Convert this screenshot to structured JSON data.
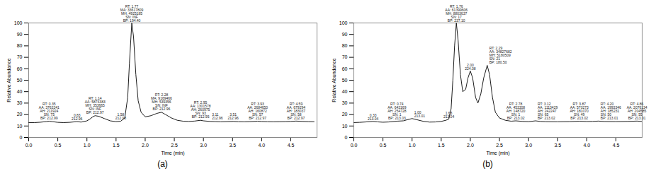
{
  "chart_data": [
    {
      "type": "line",
      "caption": "(a)",
      "x_label": "Time (min)",
      "y_label": "Relative Abundance",
      "color": "#1a1a1a",
      "xlim": [
        0,
        4.95
      ],
      "xticks": [
        {
          "value": 0,
          "label": "0.0"
        },
        0.5,
        {
          "value": 1,
          "label": "1.0"
        },
        1.5,
        {
          "value": 2,
          "label": "2.0"
        },
        2.5,
        {
          "value": 3,
          "label": "3.0"
        },
        3.5,
        {
          "value": 4,
          "label": "4.0"
        },
        4.5
      ],
      "ylim": [
        0,
        100
      ],
      "yticks": [
        0,
        10,
        20,
        30,
        40,
        50,
        60,
        70,
        80,
        90,
        100
      ],
      "x": [
        0,
        0.1,
        0.2,
        0.3,
        0.35,
        0.4,
        0.5,
        0.6,
        0.7,
        0.83,
        0.9,
        1.0,
        1.05,
        1.1,
        1.14,
        1.2,
        1.3,
        1.4,
        1.5,
        1.58,
        1.65,
        1.7,
        1.73,
        1.77,
        1.8,
        1.84,
        1.88,
        1.93,
        2.0,
        2.1,
        2.2,
        2.28,
        2.35,
        2.45,
        2.55,
        2.65,
        2.75,
        2.85,
        2.95,
        3.0,
        3.11,
        3.2,
        3.3,
        3.4,
        3.51,
        3.6,
        3.7,
        3.8,
        3.93,
        4.0,
        4.1,
        4.2,
        4.3,
        4.4,
        4.5,
        4.59,
        4.7,
        4.8,
        4.9
      ],
      "values": [
        13,
        13,
        13.3,
        13.8,
        14.2,
        13.8,
        13.2,
        13,
        13.2,
        13.8,
        13.4,
        14.5,
        16,
        18,
        19,
        18.5,
        16.5,
        14.5,
        13.8,
        14.2,
        17,
        35,
        65,
        100,
        88,
        55,
        32,
        22,
        18,
        19,
        21,
        22,
        20,
        17,
        15,
        14.2,
        14,
        14.3,
        15,
        14.5,
        14,
        13.8,
        13.6,
        13.8,
        14,
        13.7,
        13.6,
        13.8,
        14.2,
        13.9,
        13.7,
        13.6,
        13.7,
        13.8,
        14,
        14.3,
        14,
        13.8,
        13.7
      ],
      "annotations": [
        {
          "x": 0.35,
          "y": 14.5,
          "text": [
            "RT: 0.35",
            "AA: 3763241",
            "AH: 211924",
            "SN: 75",
            "BP: 212.99"
          ]
        },
        {
          "x": 0.83,
          "y": 14,
          "text": [
            "0.83",
            "212.96"
          ]
        },
        {
          "x": 1.14,
          "y": 19.5,
          "text": [
            "RT: 1.14",
            "AA: 5874383",
            "MH: 353665",
            "SN: INF",
            "BP: 212.97"
          ]
        },
        {
          "x": 1.58,
          "y": 14.5,
          "text": [
            "1.58",
            "212.98"
          ]
        },
        {
          "x": 1.77,
          "y": 100,
          "text": [
            "RT: 1.77",
            "MA: 33617809",
            "MH: 4925185",
            "SN: INF",
            "BP: 194.40"
          ]
        },
        {
          "x": 2.28,
          "y": 22.5,
          "text": [
            "RT: 2.28",
            "MA: 9169466",
            "MH: 539356",
            "SN: INF",
            "BP: 212.96"
          ]
        },
        {
          "x": 2.95,
          "y": 15.5,
          "text": [
            "RT: 2.95",
            "AA: 1301578",
            "AH: 260975",
            "SN: 93",
            "BP: 212.95"
          ]
        },
        {
          "x": 3.11,
          "y": 14.5,
          "text": [
            "3.11",
            "212.96"
          ]
        },
        {
          "x": 3.51,
          "y": 14.5,
          "text": [
            "3.51",
            "212.96"
          ]
        },
        {
          "x": 3.93,
          "y": 14.5,
          "text": [
            "RT: 3.93",
            "AA: 2684650",
            "AH: 160872",
            "SN: 57",
            "BP: 212.97"
          ]
        },
        {
          "x": 4.59,
          "y": 14.5,
          "text": [
            "RT: 4.59",
            "AA: 679294",
            "AH: 183037",
            "SN: 58",
            "BP: 212.97"
          ]
        }
      ]
    },
    {
      "type": "line",
      "caption": "(b)",
      "x_label": "Time (min)",
      "y_label": "Relative Abundance",
      "color": "#1a1a1a",
      "xlim": [
        0,
        4.95
      ],
      "xticks": [
        {
          "value": 0,
          "label": "0.0"
        },
        0.5,
        {
          "value": 1,
          "label": "1.0"
        },
        1.5,
        {
          "value": 2,
          "label": "2.0"
        },
        2.5,
        {
          "value": 3,
          "label": "3.0"
        },
        3.5,
        {
          "value": 4,
          "label": "4.0"
        },
        4.5
      ],
      "ylim": [
        0,
        100
      ],
      "yticks": [
        0,
        10,
        20,
        30,
        40,
        50,
        60,
        70,
        80,
        90,
        100
      ],
      "x": [
        0,
        0.1,
        0.2,
        0.33,
        0.4,
        0.5,
        0.6,
        0.74,
        0.85,
        0.92,
        1.0,
        1.08,
        1.2,
        1.3,
        1.4,
        1.5,
        1.58,
        1.63,
        1.67,
        1.7,
        1.73,
        1.76,
        1.79,
        1.83,
        1.87,
        1.92,
        1.96,
        2.0,
        2.04,
        2.09,
        2.13,
        2.18,
        2.23,
        2.29,
        2.33,
        2.38,
        2.43,
        2.5,
        2.6,
        2.7,
        2.78,
        2.9,
        3.0,
        3.12,
        3.2,
        3.3,
        3.5,
        3.7,
        3.87,
        4.0,
        4.1,
        4.2,
        4.3,
        4.5,
        4.7,
        4.86,
        4.95
      ],
      "values": [
        13,
        13.2,
        13.5,
        14,
        13.6,
        13.3,
        13.5,
        14.2,
        14.5,
        15.5,
        16.5,
        15.5,
        14,
        13.4,
        13.5,
        14,
        15,
        16,
        25,
        50,
        80,
        100,
        85,
        55,
        40,
        42,
        52,
        58,
        52,
        35,
        30,
        38,
        52,
        63,
        55,
        35,
        22,
        17,
        15,
        14.2,
        14.5,
        14,
        13.8,
        14.5,
        14,
        13.7,
        13.6,
        13.8,
        14.2,
        13.9,
        14,
        14.3,
        13.9,
        13.8,
        14,
        14.3,
        14
      ],
      "annotations": [
        {
          "x": 0.33,
          "y": 14,
          "text": [
            "0.33",
            "213.04"
          ]
        },
        {
          "x": 0.74,
          "y": 14.5,
          "text": [
            "RT: 0.74",
            "AA: 643169",
            "AH: 254728",
            "SN: 1",
            "BP: 213.03"
          ]
        },
        {
          "x": 1.0,
          "y": 16.5,
          "text": [
            "1.00",
            "213.01"
          ]
        },
        {
          "x": 1.63,
          "y": 16,
          "text": [
            "1.63",
            "213.04"
          ]
        },
        {
          "x": 1.76,
          "y": 100,
          "text": [
            "RT: 1.76",
            "AA: 61399606",
            "MH: 8803637",
            "SN: 17",
            "BP: 237.10"
          ]
        },
        {
          "x": 2.0,
          "y": 58,
          "text": [
            "2.00",
            "224.08"
          ]
        },
        {
          "x": 2.29,
          "y": 63,
          "text": [
            "RT: 2.29",
            "AA: 34827682",
            "MH: 5180509",
            "SN: 21",
            "BP: 180.50"
          ]
        },
        {
          "x": 2.78,
          "y": 14.5,
          "text": [
            "RT: 2.78",
            "AA: 453308",
            "AH: 148720",
            "SN: 1",
            "BP: 213.02"
          ]
        },
        {
          "x": 3.12,
          "y": 14.5,
          "text": [
            "RT: 3.12",
            "AA: 1113429",
            "AH: 242247",
            "SN: 65",
            "BP: 213.02"
          ]
        },
        {
          "x": 3.87,
          "y": 14.2,
          "text": [
            "RT: 3.87",
            "AA: 570273",
            "AH: 181070",
            "SN: 49",
            "BP: 213.02"
          ]
        },
        {
          "x": 4.2,
          "y": 14.3,
          "text": [
            "RT: 4.20",
            "AA: 1993346",
            "AH: 185231",
            "SN: 50",
            "BP: 213.01"
          ]
        },
        {
          "x": 4.86,
          "y": 14.3,
          "text": [
            "RT: 4.86",
            "AA: 2076134",
            "AH: 204585",
            "SN: 55",
            "BP: 213.01"
          ]
        }
      ]
    }
  ]
}
